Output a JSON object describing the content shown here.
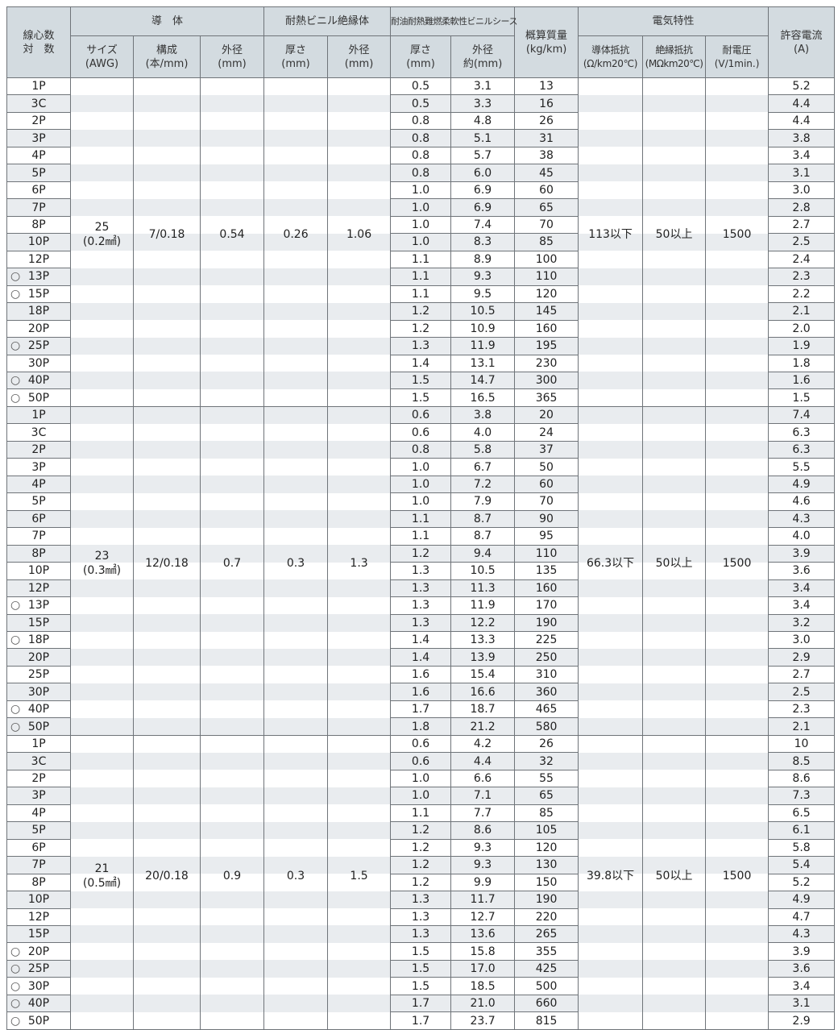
{
  "header": {
    "cores": "線心数\n対　数",
    "conductor": "導　体",
    "conductor_size": "サイズ\n(AWG)",
    "conductor_comp": "構成\n(本/mm)",
    "conductor_od": "外径\n(mm)",
    "insulation": "耐熱ビニル絶縁体",
    "ins_thick": "厚さ\n(mm)",
    "ins_od": "外径\n(mm)",
    "sheath": "耐油耐熱難燃柔軟性ビニルシース",
    "sheath_thick": "厚さ\n(mm)",
    "sheath_od": "外径\n約(mm)",
    "mass": "概算質量\n(kg/km)",
    "electrical": "電気特性",
    "resistance": "導体抵抗\n(Ω/km20℃)",
    "ins_resistance": "絶縁抵抗\n(MΩkm20℃)",
    "voltage": "耐電圧\n(V/1min.)",
    "current": "許容電流\n(A)"
  },
  "colors": {
    "header_bg": "#d3dbe0",
    "stripe": "#e9ecef",
    "border": "#6f7479"
  },
  "groups": [
    {
      "size": "25",
      "size_sub": "(0.2㎟)",
      "composition": "7/0.18",
      "cond_od": "0.54",
      "ins_thick": "0.26",
      "ins_od": "1.06",
      "resistance": "113以下",
      "ins_resistance": "50以上",
      "voltage": "1500",
      "rows": [
        [
          "",
          "1P",
          "0.5",
          "3.1",
          "13",
          "5.2"
        ],
        [
          "",
          "3C",
          "0.5",
          "3.3",
          "16",
          "4.4"
        ],
        [
          "",
          "2P",
          "0.8",
          "4.8",
          "26",
          "4.4"
        ],
        [
          "",
          "3P",
          "0.8",
          "5.1",
          "31",
          "3.8"
        ],
        [
          "",
          "4P",
          "0.8",
          "5.7",
          "38",
          "3.4"
        ],
        [
          "",
          "5P",
          "0.8",
          "6.0",
          "45",
          "3.1"
        ],
        [
          "",
          "6P",
          "1.0",
          "6.9",
          "60",
          "3.0"
        ],
        [
          "",
          "7P",
          "1.0",
          "6.9",
          "65",
          "2.8"
        ],
        [
          "",
          "8P",
          "1.0",
          "7.4",
          "70",
          "2.7"
        ],
        [
          "",
          "10P",
          "1.0",
          "8.3",
          "85",
          "2.5"
        ],
        [
          "",
          "12P",
          "1.1",
          "8.9",
          "100",
          "2.4"
        ],
        [
          "○",
          "13P",
          "1.1",
          "9.3",
          "110",
          "2.3"
        ],
        [
          "○",
          "15P",
          "1.1",
          "9.5",
          "120",
          "2.2"
        ],
        [
          "",
          "18P",
          "1.2",
          "10.5",
          "145",
          "2.1"
        ],
        [
          "",
          "20P",
          "1.2",
          "10.9",
          "160",
          "2.0"
        ],
        [
          "○",
          "25P",
          "1.3",
          "11.9",
          "195",
          "1.9"
        ],
        [
          "",
          "30P",
          "1.4",
          "13.1",
          "230",
          "1.8"
        ],
        [
          "○",
          "40P",
          "1.5",
          "14.7",
          "300",
          "1.6"
        ],
        [
          "○",
          "50P",
          "1.5",
          "16.5",
          "365",
          "1.5"
        ]
      ]
    },
    {
      "size": "23",
      "size_sub": "(0.3㎟)",
      "composition": "12/0.18",
      "cond_od": "0.7",
      "ins_thick": "0.3",
      "ins_od": "1.3",
      "resistance": "66.3以下",
      "ins_resistance": "50以上",
      "voltage": "1500",
      "rows": [
        [
          "",
          "1P",
          "0.6",
          "3.8",
          "20",
          "7.4"
        ],
        [
          "",
          "3C",
          "0.6",
          "4.0",
          "24",
          "6.3"
        ],
        [
          "",
          "2P",
          "0.8",
          "5.8",
          "37",
          "6.3"
        ],
        [
          "",
          "3P",
          "1.0",
          "6.7",
          "50",
          "5.5"
        ],
        [
          "",
          "4P",
          "1.0",
          "7.2",
          "60",
          "4.9"
        ],
        [
          "",
          "5P",
          "1.0",
          "7.9",
          "70",
          "4.6"
        ],
        [
          "",
          "6P",
          "1.1",
          "8.7",
          "90",
          "4.3"
        ],
        [
          "",
          "7P",
          "1.1",
          "8.7",
          "95",
          "4.0"
        ],
        [
          "",
          "8P",
          "1.2",
          "9.4",
          "110",
          "3.9"
        ],
        [
          "",
          "10P",
          "1.3",
          "10.5",
          "135",
          "3.6"
        ],
        [
          "",
          "12P",
          "1.3",
          "11.3",
          "160",
          "3.4"
        ],
        [
          "○",
          "13P",
          "1.3",
          "11.9",
          "170",
          "3.4"
        ],
        [
          "",
          "15P",
          "1.3",
          "12.2",
          "190",
          "3.2"
        ],
        [
          "○",
          "18P",
          "1.4",
          "13.3",
          "225",
          "3.0"
        ],
        [
          "",
          "20P",
          "1.4",
          "13.9",
          "250",
          "2.9"
        ],
        [
          "",
          "25P",
          "1.6",
          "15.4",
          "310",
          "2.7"
        ],
        [
          "",
          "30P",
          "1.6",
          "16.6",
          "360",
          "2.5"
        ],
        [
          "○",
          "40P",
          "1.7",
          "18.7",
          "465",
          "2.3"
        ],
        [
          "○",
          "50P",
          "1.8",
          "21.2",
          "580",
          "2.1"
        ]
      ]
    },
    {
      "size": "21",
      "size_sub": "(0.5㎟)",
      "composition": "20/0.18",
      "cond_od": "0.9",
      "ins_thick": "0.3",
      "ins_od": "1.5",
      "resistance": "39.8以下",
      "ins_resistance": "50以上",
      "voltage": "1500",
      "rows": [
        [
          "",
          "1P",
          "0.6",
          "4.2",
          "26",
          "10"
        ],
        [
          "",
          "3C",
          "0.6",
          "4.4",
          "32",
          "8.5"
        ],
        [
          "",
          "2P",
          "1.0",
          "6.6",
          "55",
          "8.6"
        ],
        [
          "",
          "3P",
          "1.0",
          "7.1",
          "65",
          "7.3"
        ],
        [
          "",
          "4P",
          "1.1",
          "7.7",
          "85",
          "6.5"
        ],
        [
          "",
          "5P",
          "1.2",
          "8.6",
          "105",
          "6.1"
        ],
        [
          "",
          "6P",
          "1.2",
          "9.3",
          "120",
          "5.8"
        ],
        [
          "",
          "7P",
          "1.2",
          "9.3",
          "130",
          "5.4"
        ],
        [
          "",
          "8P",
          "1.2",
          "9.9",
          "150",
          "5.2"
        ],
        [
          "",
          "10P",
          "1.3",
          "11.7",
          "190",
          "4.9"
        ],
        [
          "",
          "12P",
          "1.3",
          "12.7",
          "220",
          "4.7"
        ],
        [
          "",
          "15P",
          "1.3",
          "13.6",
          "265",
          "4.3"
        ],
        [
          "○",
          "20P",
          "1.5",
          "15.8",
          "355",
          "3.9"
        ],
        [
          "○",
          "25P",
          "1.5",
          "17.0",
          "425",
          "3.6"
        ],
        [
          "○",
          "30P",
          "1.5",
          "18.5",
          "500",
          "3.4"
        ],
        [
          "○",
          "40P",
          "1.7",
          "21.0",
          "660",
          "3.1"
        ],
        [
          "○",
          "50P",
          "1.7",
          "23.7",
          "815",
          "2.9"
        ]
      ]
    }
  ]
}
